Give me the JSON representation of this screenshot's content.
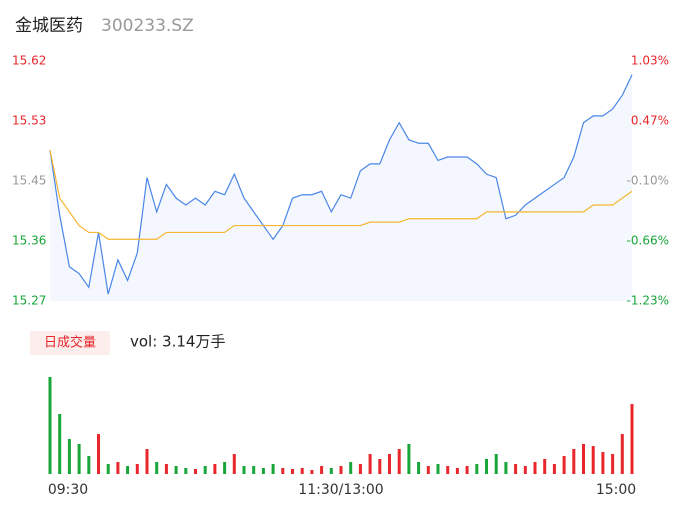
{
  "header": {
    "title": "金城医药",
    "code": "300233.SZ"
  },
  "chart_data": [
    {
      "type": "line",
      "x": [
        0,
        4,
        8,
        12,
        16,
        20,
        24,
        28,
        32,
        36,
        40,
        44,
        48,
        52,
        56,
        60,
        64,
        68,
        72,
        76,
        80,
        84,
        88,
        92,
        96,
        100,
        104,
        108,
        112,
        116,
        120,
        124,
        128,
        132,
        136,
        140,
        144,
        148,
        152,
        156,
        160,
        164,
        168,
        172,
        176,
        180,
        184,
        188,
        192,
        196,
        200,
        204,
        208,
        212,
        216,
        220,
        224,
        228,
        232,
        236,
        240
      ],
      "xlim": [
        0,
        240
      ],
      "ylim": [
        15.27,
        15.62
      ],
      "yticks": [
        15.27,
        {
          "value": 15.3575,
          "label": "15.36"
        },
        {
          "value": 15.445,
          "label": "15.45"
        },
        {
          "value": 15.5325,
          "label": "15.53"
        },
        15.62
      ],
      "y2lim": [
        -1.23,
        1.03
      ],
      "y2ticks": [
        {
          "value": -1.23,
          "label": "-1.23%"
        },
        {
          "value": -0.665,
          "label": "-0.66%"
        },
        {
          "value": -0.1,
          "label": "-0.10%"
        },
        {
          "value": 0.465,
          "label": "0.47%"
        },
        {
          "value": 1.03,
          "label": "1.03%"
        }
      ],
      "series": [
        {
          "color": "#4a86e8",
          "values": [
            15.49,
            15.395,
            15.32,
            15.31,
            15.29,
            15.37,
            15.28,
            15.33,
            15.3,
            15.34,
            15.45,
            15.4,
            15.44,
            15.42,
            15.41,
            15.42,
            15.41,
            15.43,
            15.425,
            15.455,
            15.42,
            15.4,
            15.38,
            15.36,
            15.38,
            15.42,
            15.425,
            15.425,
            15.43,
            15.4,
            15.425,
            15.42,
            15.46,
            15.47,
            15.47,
            15.505,
            15.53,
            15.505,
            15.5,
            15.5,
            15.475,
            15.48,
            15.48,
            15.48,
            15.47,
            15.455,
            15.45,
            15.39,
            15.395,
            15.41,
            15.42,
            15.43,
            15.44,
            15.45,
            15.48,
            15.53,
            15.54,
            15.54,
            15.55,
            15.57,
            15.6
          ]
        },
        {
          "color": "#f5b731",
          "values": [
            15.49,
            15.42,
            15.4,
            15.38,
            15.37,
            15.37,
            15.36,
            15.36,
            15.36,
            15.36,
            15.36,
            15.36,
            15.37,
            15.37,
            15.37,
            15.37,
            15.37,
            15.37,
            15.37,
            15.38,
            15.38,
            15.38,
            15.38,
            15.38,
            15.38,
            15.38,
            15.38,
            15.38,
            15.38,
            15.38,
            15.38,
            15.38,
            15.38,
            15.385,
            15.385,
            15.385,
            15.385,
            15.39,
            15.39,
            15.39,
            15.39,
            15.39,
            15.39,
            15.39,
            15.39,
            15.4,
            15.4,
            15.4,
            15.4,
            15.4,
            15.4,
            15.4,
            15.4,
            15.4,
            15.4,
            15.4,
            15.41,
            15.41,
            15.41,
            15.42,
            15.43
          ]
        }
      ]
    },
    {
      "type": "bar",
      "title": "日成交量",
      "subtitle": "vol: 3.14万手",
      "x": [
        0,
        4,
        8,
        12,
        16,
        20,
        24,
        28,
        32,
        36,
        40,
        44,
        48,
        52,
        56,
        60,
        64,
        68,
        72,
        76,
        80,
        84,
        88,
        92,
        96,
        100,
        104,
        108,
        112,
        116,
        120,
        124,
        128,
        132,
        136,
        140,
        144,
        148,
        152,
        156,
        160,
        164,
        168,
        172,
        176,
        180,
        184,
        188,
        192,
        196,
        200,
        204,
        208,
        212,
        216,
        220,
        224,
        228,
        232,
        236,
        240
      ],
      "xlim": [
        0,
        240
      ],
      "xticks": [
        {
          "value": 0,
          "label": "09:30"
        },
        {
          "value": 120,
          "label": "11:30/13:00"
        },
        {
          "value": 240,
          "label": "15:00"
        }
      ],
      "up_color": "#e8262b",
      "down_color": "#18a53a",
      "values": [
        2425,
        1500,
        875,
        750,
        450,
        1000,
        250,
        300,
        200,
        250,
        625,
        300,
        250,
        200,
        150,
        125,
        200,
        250,
        300,
        500,
        200,
        200,
        150,
        250,
        150,
        125,
        150,
        100,
        200,
        150,
        200,
        300,
        250,
        500,
        375,
        500,
        625,
        750,
        300,
        200,
        250,
        200,
        150,
        200,
        250,
        375,
        500,
        300,
        250,
        200,
        300,
        375,
        250,
        450,
        625,
        750,
        700,
        550,
        500,
        1000,
        1750
      ]
    }
  ]
}
